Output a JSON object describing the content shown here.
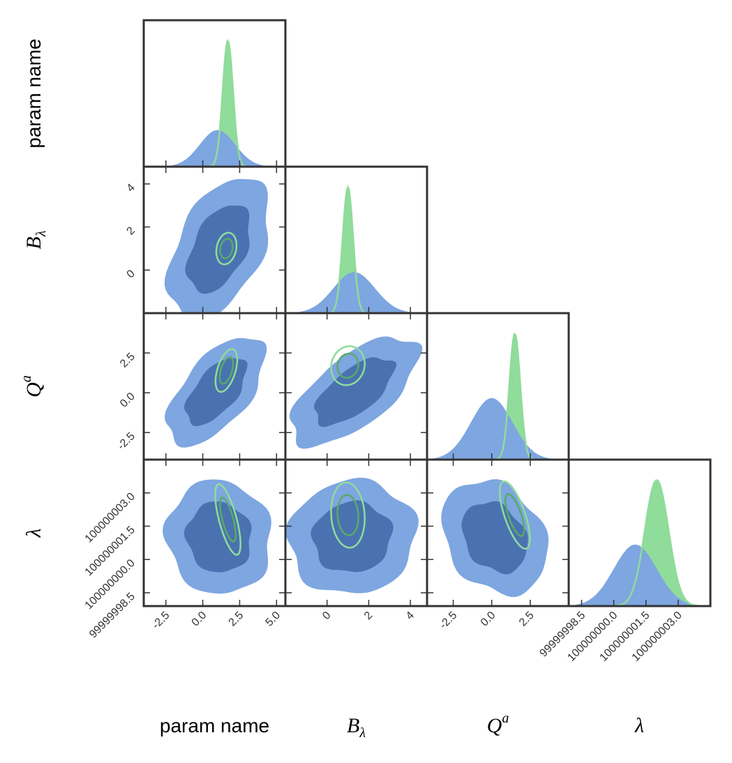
{
  "colors": {
    "frame": "#333333",
    "blue_outer": "#7ea6e0",
    "blue_inner": "#4a72b0",
    "green_fill": "#8fdc9b",
    "green_outer_line": "#8fdc9b",
    "green_inner_line": "#5aaa66",
    "green_inner_fill": "#6cc07a"
  },
  "chart_data": {
    "type": "corner",
    "parameters": [
      {
        "id": "p0",
        "label": "param name",
        "is_math": false,
        "mean_blue": 1.0,
        "sd_blue": 1.2,
        "mean_green": 1.7,
        "sd_green": 0.35,
        "range": [
          -4.0,
          5.6
        ],
        "ticks": [
          -2.5,
          0.0,
          2.5,
          5.0
        ],
        "tick_labels": [
          "-2.5",
          "0.0",
          "2.5",
          "5.0"
        ]
      },
      {
        "id": "p1",
        "label": "B",
        "subscript": "λ",
        "is_math": true,
        "mean_blue": 1.3,
        "sd_blue": 1.0,
        "mean_green": 1.0,
        "sd_green": 0.25,
        "range": [
          -2.0,
          4.8
        ],
        "ticks": [
          0,
          2,
          4
        ],
        "tick_labels": [
          "0",
          "2",
          "4"
        ]
      },
      {
        "id": "p2",
        "label": "Q",
        "superscript": "a",
        "is_math": true,
        "mean_blue": 0.0,
        "sd_blue": 1.35,
        "mean_green": 1.5,
        "sd_green": 0.35,
        "range": [
          -4.2,
          5.0
        ],
        "ticks": [
          -2.5,
          0.0,
          2.5
        ],
        "tick_labels": [
          "-2.5",
          "0.0",
          "2.5"
        ]
      },
      {
        "id": "p3",
        "label": "λ",
        "is_math": true,
        "mean_blue": 1.0,
        "sd_blue": 1.0,
        "mean_green": 2.0,
        "sd_green": 0.55,
        "range": [
          -2.1,
          4.5
        ],
        "ticks": [
          -1.5,
          0.0,
          1.5,
          3.0
        ],
        "tick_labels": [
          "99999998.5",
          "100000000.0",
          "100000001.5",
          "100000003.0"
        ]
      }
    ],
    "pairs": [
      {
        "row": 1,
        "col": 0,
        "blue": {
          "cx": 1.1,
          "cy": 1.0,
          "sx": 1.4,
          "sy": 1.35,
          "rho": 0.45
        },
        "green": {
          "cx": 1.6,
          "cy": 1.0,
          "sx": 0.28,
          "sy": 0.3,
          "rho": 0.2
        }
      },
      {
        "row": 2,
        "col": 0,
        "blue": {
          "cx": 0.9,
          "cy": 0.1,
          "sx": 1.35,
          "sy": 1.4,
          "rho": 0.6
        },
        "green": {
          "cx": 1.6,
          "cy": 1.4,
          "sx": 0.3,
          "sy": 0.55,
          "rho": 0.5
        }
      },
      {
        "row": 2,
        "col": 1,
        "blue": {
          "cx": 1.3,
          "cy": 0.1,
          "sx": 1.25,
          "sy": 1.4,
          "rho": 0.65
        },
        "green": {
          "cx": 1.0,
          "cy": 1.7,
          "sx": 0.33,
          "sy": 0.5,
          "rho": 0.1
        }
      },
      {
        "row": 3,
        "col": 0,
        "blue": {
          "cx": 1.1,
          "cy": 1.0,
          "sx": 1.45,
          "sy": 1.05,
          "rho": -0.05
        },
        "green": {
          "cx": 1.7,
          "cy": 1.8,
          "sx": 0.35,
          "sy": 0.65,
          "rho": -0.7
        }
      },
      {
        "row": 3,
        "col": 1,
        "blue": {
          "cx": 1.2,
          "cy": 1.0,
          "sx": 1.25,
          "sy": 1.05,
          "rho": 0.05
        },
        "green": {
          "cx": 1.0,
          "cy": 2.0,
          "sx": 0.33,
          "sy": 0.6,
          "rho": -0.1
        }
      },
      {
        "row": 3,
        "col": 2,
        "blue": {
          "cx": 0.2,
          "cy": 1.0,
          "sx": 1.4,
          "sy": 1.05,
          "rho": -0.25
        },
        "green": {
          "cx": 1.5,
          "cy": 2.0,
          "sx": 0.4,
          "sy": 0.62,
          "rho": -0.7
        }
      }
    ],
    "grid": false,
    "legend": "none"
  }
}
